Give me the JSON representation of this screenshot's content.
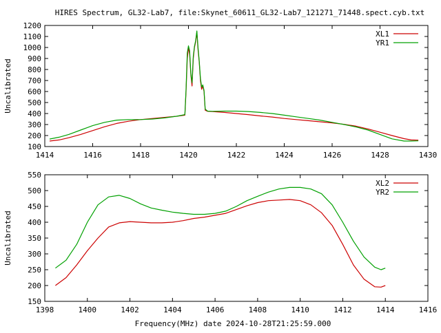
{
  "figure": {
    "title": "HIRES Spectrum, GL32-Lab7, file:Skynet_60611_GL32-Lab7_121271_71448.spect.cyb.txt",
    "xlabel": "Frequency(MHz) date 2024-10-28T21:25:59.000"
  },
  "colors": {
    "red": "#cc0000",
    "green": "#00a000",
    "axis": "#000000"
  },
  "chart_data": [
    {
      "type": "line",
      "title": "",
      "xlabel": "",
      "ylabel": "Uncalibrated",
      "xlim": [
        1414,
        1430
      ],
      "ylim": [
        100,
        1200
      ],
      "xticks": [
        1414,
        1416,
        1418,
        1420,
        1422,
        1424,
        1426,
        1428,
        1430
      ],
      "yticks": [
        100,
        200,
        300,
        400,
        500,
        600,
        700,
        800,
        900,
        1000,
        1100,
        1200
      ],
      "legend_position": "top-right",
      "grid": false,
      "series": [
        {
          "name": "XL1",
          "color": "#cc0000",
          "points": [
            [
              1414.2,
              150
            ],
            [
              1414.6,
              160
            ],
            [
              1415,
              180
            ],
            [
              1415.5,
              210
            ],
            [
              1416,
              245
            ],
            [
              1416.5,
              280
            ],
            [
              1417,
              310
            ],
            [
              1417.5,
              330
            ],
            [
              1418,
              345
            ],
            [
              1418.5,
              355
            ],
            [
              1419,
              365
            ],
            [
              1419.5,
              375
            ],
            [
              1419.85,
              385
            ],
            [
              1419.9,
              600
            ],
            [
              1419.95,
              900
            ],
            [
              1420.0,
              1000
            ],
            [
              1420.05,
              940
            ],
            [
              1420.1,
              750
            ],
            [
              1420.15,
              650
            ],
            [
              1420.2,
              900
            ],
            [
              1420.25,
              1000
            ],
            [
              1420.3,
              1050
            ],
            [
              1420.35,
              1140
            ],
            [
              1420.4,
              980
            ],
            [
              1420.45,
              870
            ],
            [
              1420.5,
              700
            ],
            [
              1420.55,
              620
            ],
            [
              1420.6,
              650
            ],
            [
              1420.65,
              600
            ],
            [
              1420.7,
              430
            ],
            [
              1420.8,
              420
            ],
            [
              1421,
              418
            ],
            [
              1421.5,
              410
            ],
            [
              1422,
              400
            ],
            [
              1422.5,
              390
            ],
            [
              1423,
              378
            ],
            [
              1423.5,
              368
            ],
            [
              1424,
              355
            ],
            [
              1424.5,
              345
            ],
            [
              1425,
              335
            ],
            [
              1425.5,
              325
            ],
            [
              1426,
              315
            ],
            [
              1426.5,
              302
            ],
            [
              1427,
              285
            ],
            [
              1427.5,
              260
            ],
            [
              1428,
              230
            ],
            [
              1428.5,
              200
            ],
            [
              1429,
              172
            ],
            [
              1429.3,
              160
            ],
            [
              1429.6,
              158
            ]
          ]
        },
        {
          "name": "YR1",
          "color": "#00a000",
          "points": [
            [
              1414.2,
              168
            ],
            [
              1414.6,
              185
            ],
            [
              1415,
              210
            ],
            [
              1415.5,
              250
            ],
            [
              1416,
              290
            ],
            [
              1416.5,
              320
            ],
            [
              1417,
              340
            ],
            [
              1417.5,
              345
            ],
            [
              1418,
              345
            ],
            [
              1418.5,
              350
            ],
            [
              1419,
              360
            ],
            [
              1419.5,
              375
            ],
            [
              1419.85,
              390
            ],
            [
              1419.9,
              620
            ],
            [
              1419.95,
              950
            ],
            [
              1420.0,
              1015
            ],
            [
              1420.05,
              970
            ],
            [
              1420.1,
              760
            ],
            [
              1420.15,
              680
            ],
            [
              1420.2,
              920
            ],
            [
              1420.25,
              1010
            ],
            [
              1420.3,
              1060
            ],
            [
              1420.35,
              1150
            ],
            [
              1420.4,
              1000
            ],
            [
              1420.45,
              880
            ],
            [
              1420.5,
              720
            ],
            [
              1420.55,
              640
            ],
            [
              1420.6,
              660
            ],
            [
              1420.65,
              610
            ],
            [
              1420.7,
              440
            ],
            [
              1420.8,
              422
            ],
            [
              1421,
              420
            ],
            [
              1421.5,
              422
            ],
            [
              1422,
              422
            ],
            [
              1422.5,
              418
            ],
            [
              1423,
              410
            ],
            [
              1423.5,
              400
            ],
            [
              1424,
              385
            ],
            [
              1424.5,
              370
            ],
            [
              1425,
              355
            ],
            [
              1425.5,
              340
            ],
            [
              1426,
              320
            ],
            [
              1426.5,
              300
            ],
            [
              1427,
              278
            ],
            [
              1427.5,
              250
            ],
            [
              1428,
              210
            ],
            [
              1428.5,
              170
            ],
            [
              1429,
              150
            ],
            [
              1429.3,
              150
            ],
            [
              1429.6,
              152
            ]
          ]
        }
      ]
    },
    {
      "type": "line",
      "title": "",
      "xlabel": "Frequency(MHz) date 2024-10-28T21:25:59.000",
      "ylabel": "Uncalibrated",
      "xlim": [
        1398,
        1416
      ],
      "ylim": [
        150,
        550
      ],
      "xticks": [
        1398,
        1400,
        1402,
        1404,
        1406,
        1408,
        1410,
        1412,
        1414,
        1416
      ],
      "yticks": [
        150,
        200,
        250,
        300,
        350,
        400,
        450,
        500,
        550
      ],
      "legend_position": "top-right",
      "grid": false,
      "series": [
        {
          "name": "XL2",
          "color": "#cc0000",
          "points": [
            [
              1398.5,
              200
            ],
            [
              1399,
              225
            ],
            [
              1399.5,
              265
            ],
            [
              1400,
              310
            ],
            [
              1400.5,
              350
            ],
            [
              1401,
              385
            ],
            [
              1401.5,
              398
            ],
            [
              1402,
              402
            ],
            [
              1402.5,
              400
            ],
            [
              1403,
              398
            ],
            [
              1403.5,
              398
            ],
            [
              1404,
              400
            ],
            [
              1404.5,
              405
            ],
            [
              1405,
              412
            ],
            [
              1405.5,
              416
            ],
            [
              1406,
              422
            ],
            [
              1406.5,
              428
            ],
            [
              1407,
              440
            ],
            [
              1407.5,
              452
            ],
            [
              1408,
              462
            ],
            [
              1408.5,
              468
            ],
            [
              1409,
              470
            ],
            [
              1409.5,
              472
            ],
            [
              1410,
              468
            ],
            [
              1410.5,
              455
            ],
            [
              1411,
              430
            ],
            [
              1411.5,
              390
            ],
            [
              1412,
              330
            ],
            [
              1412.5,
              265
            ],
            [
              1413,
              220
            ],
            [
              1413.5,
              196
            ],
            [
              1413.8,
              195
            ],
            [
              1414,
              200
            ]
          ]
        },
        {
          "name": "YR2",
          "color": "#00a000",
          "points": [
            [
              1398.5,
              255
            ],
            [
              1399,
              280
            ],
            [
              1399.5,
              330
            ],
            [
              1400,
              400
            ],
            [
              1400.5,
              455
            ],
            [
              1401,
              480
            ],
            [
              1401.5,
              485
            ],
            [
              1402,
              475
            ],
            [
              1402.5,
              458
            ],
            [
              1403,
              445
            ],
            [
              1403.5,
              438
            ],
            [
              1404,
              432
            ],
            [
              1404.5,
              428
            ],
            [
              1405,
              425
            ],
            [
              1405.5,
              425
            ],
            [
              1406,
              428
            ],
            [
              1406.5,
              435
            ],
            [
              1407,
              450
            ],
            [
              1407.5,
              468
            ],
            [
              1408,
              482
            ],
            [
              1408.5,
              495
            ],
            [
              1409,
              505
            ],
            [
              1409.5,
              510
            ],
            [
              1410,
              510
            ],
            [
              1410.5,
              505
            ],
            [
              1411,
              490
            ],
            [
              1411.5,
              455
            ],
            [
              1412,
              400
            ],
            [
              1412.5,
              340
            ],
            [
              1413,
              290
            ],
            [
              1413.5,
              258
            ],
            [
              1413.8,
              250
            ],
            [
              1414,
              255
            ]
          ]
        }
      ]
    }
  ]
}
